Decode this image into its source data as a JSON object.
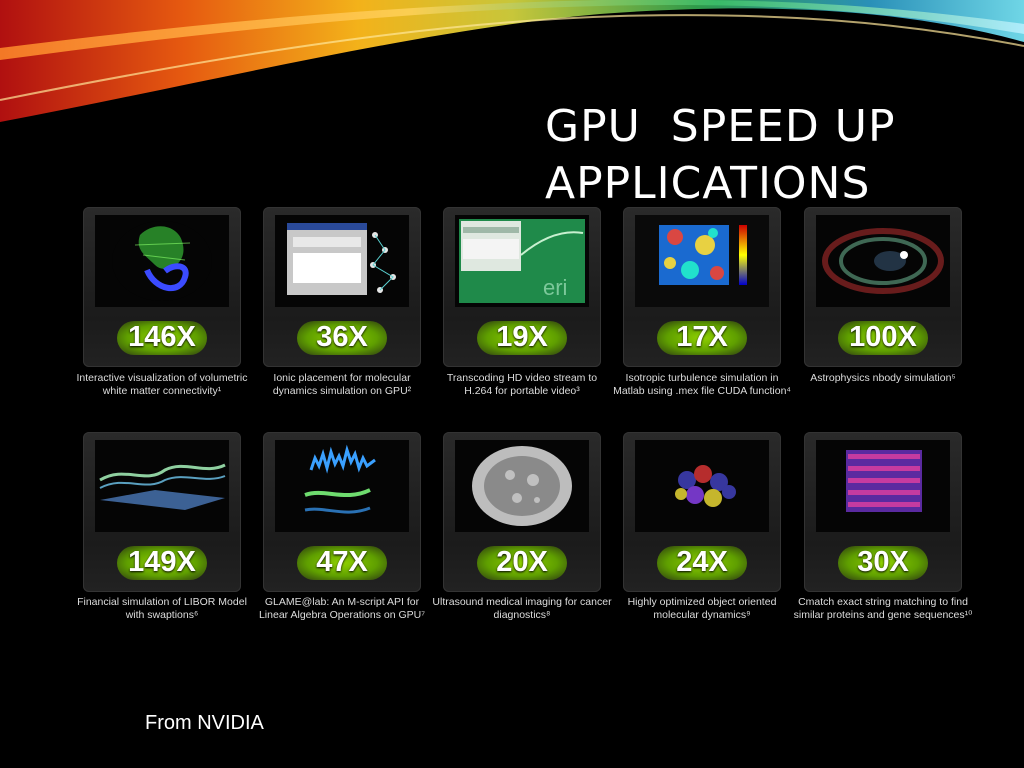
{
  "slide": {
    "title": "GPU  SPEED UP\nAPPLICATIONS",
    "source": "From NVIDIA"
  },
  "tiles": [
    {
      "speedup": "146X",
      "caption": "Interactive visualization of volumetric white matter connectivity¹",
      "image": "brain-fiber-image"
    },
    {
      "speedup": "36X",
      "caption": "Ionic placement for molecular dynamics simulation on GPU²",
      "image": "molecule-screenshot-image"
    },
    {
      "speedup": "19X",
      "caption": "Transcoding HD video stream to H.264 for portable video³",
      "image": "video-app-image"
    },
    {
      "speedup": "17X",
      "caption": "Isotropic turbulence simulation in Matlab using .mex file CUDA function⁴",
      "image": "turbulence-heatmap-image"
    },
    {
      "speedup": "100X",
      "caption": "Astrophysics nbody simulation⁵",
      "image": "nbody-galaxy-image"
    },
    {
      "speedup": "149X",
      "caption": "Financial simulation of LIBOR Model with swaptions⁶",
      "image": "financial-surface-image"
    },
    {
      "speedup": "47X",
      "caption": "GLAME@lab: An M-script API for Linear Algebra Operations on GPU⁷",
      "image": "linear-algebra-plot-image"
    },
    {
      "speedup": "20X",
      "caption": "Ultrasound medical imaging for cancer diagnostics⁸",
      "image": "ultrasound-image"
    },
    {
      "speedup": "24X",
      "caption": "Highly optimized object oriented molecular dynamics⁹",
      "image": "molecular-spheres-image"
    },
    {
      "speedup": "30X",
      "caption": "Cmatch exact string matching  to find similar proteins and gene sequences¹⁰",
      "image": "protein-sequence-image"
    }
  ],
  "colors": {
    "speed_green": "#7ec600",
    "background": "#000000"
  }
}
